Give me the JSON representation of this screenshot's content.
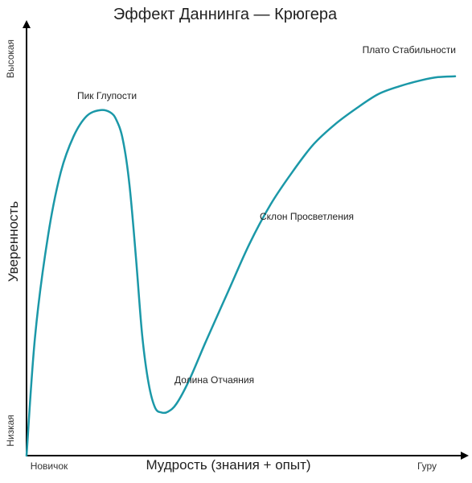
{
  "chart_data": {
    "type": "line",
    "title": "Эффект Даннинга — Крюгера",
    "xlabel": "Мудрость (знания + опыт)",
    "ylabel": "Уверенность",
    "x_tick_labels": {
      "start": "Новичок",
      "end": "Гуру"
    },
    "y_tick_labels": {
      "start": "Низкая",
      "end": "Высокая"
    },
    "xlim": [
      0,
      100
    ],
    "ylim": [
      0,
      100
    ],
    "grid": false,
    "line_color": "#1b98a8",
    "axis_color": "#000000",
    "series": [
      {
        "x": [
          0,
          2,
          5,
          8,
          11,
          14,
          17,
          19.5,
          21,
          22.5,
          24,
          25.5,
          27,
          28.5,
          30,
          31.5,
          33,
          35,
          38,
          42,
          47,
          52,
          57,
          62,
          67,
          72,
          77,
          82,
          87,
          92,
          96,
          100
        ],
        "y": [
          0,
          30,
          55,
          71,
          80,
          85,
          86.5,
          86,
          84,
          79,
          68,
          50,
          30,
          18,
          12,
          10.8,
          11,
          13,
          19,
          29,
          41,
          53,
          63,
          71,
          78,
          83,
          87,
          90.5,
          92.5,
          94,
          94.8,
          95
        ]
      }
    ],
    "annotations": [
      {
        "text": "Пик Глупости",
        "x": 17,
        "y": 86.5
      },
      {
        "text": "Долина Отчаяния",
        "x": 32,
        "y": 10.8
      },
      {
        "text": "Склон Просветления",
        "x": 62,
        "y": 71
      },
      {
        "text": "Плато Стабильности",
        "x": 97,
        "y": 95
      }
    ]
  }
}
